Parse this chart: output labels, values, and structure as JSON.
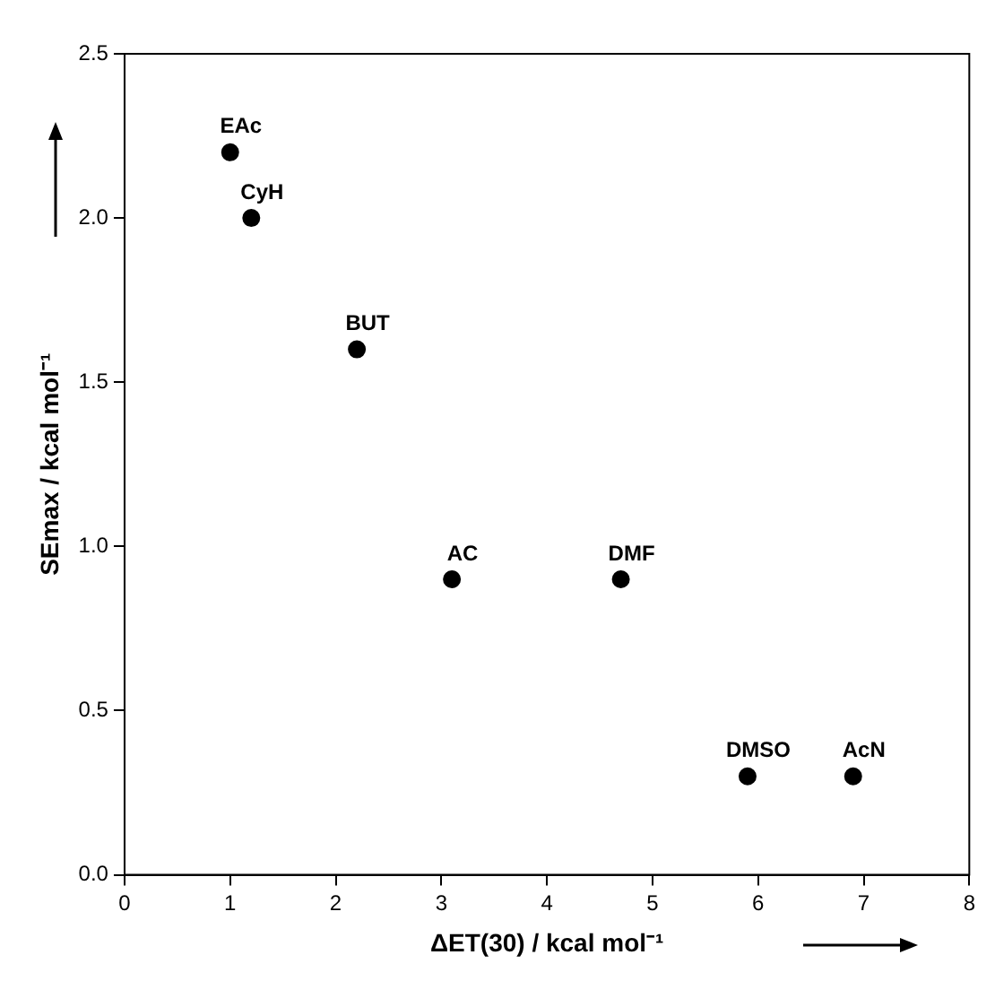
{
  "chart_data": {
    "type": "scatter",
    "xlabel": "ΔET(30) / kcal mol⁻¹",
    "ylabel": "SEmax / kcal mol⁻¹",
    "x": [
      1.0,
      1.2,
      2.2,
      3.1,
      4.7,
      5.9,
      6.9
    ],
    "series": [
      {
        "color": "#000000",
        "values": [
          2.2,
          2.0,
          1.6,
          0.9,
          0.9,
          0.3,
          0.3
        ]
      }
    ],
    "xlim": [
      0,
      8
    ],
    "xticks": [
      0,
      1,
      2,
      3,
      4,
      5,
      6,
      7,
      8
    ],
    "ylim": [
      0,
      2.5
    ],
    "yticks": [
      {
        "value": 0,
        "label": "0.0"
      },
      {
        "value": 0.5,
        "label": "0.5"
      },
      {
        "value": 1,
        "label": "1.0"
      },
      {
        "value": 1.5,
        "label": "1.5"
      },
      {
        "value": 2,
        "label": "2.0"
      },
      {
        "value": 2.5,
        "label": "2.5"
      }
    ],
    "annotations": [
      {
        "text": "EAc",
        "x": 1.0,
        "y": 2.2
      },
      {
        "text": "CyH",
        "x": 1.2,
        "y": 2.0
      },
      {
        "text": "BUT",
        "x": 2.2,
        "y": 1.6
      },
      {
        "text": "AC",
        "x": 3.1,
        "y": 0.9
      },
      {
        "text": "DMF",
        "x": 4.7,
        "y": 0.9
      },
      {
        "text": "DMSO",
        "x": 5.9,
        "y": 0.3
      },
      {
        "text": "AcN",
        "x": 6.9,
        "y": 0.3
      }
    ],
    "marker": "circle",
    "grid": false,
    "legend": false
  }
}
